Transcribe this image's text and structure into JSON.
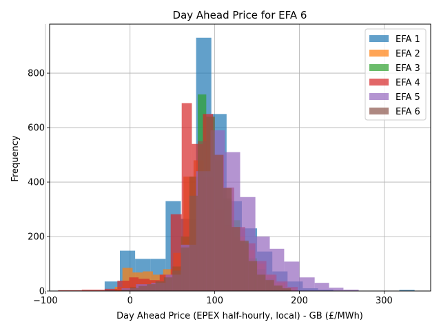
{
  "chart_data": {
    "type": "histogram",
    "title": "Day Ahead Price for EFA 6",
    "xlabel": "Day Ahead Price (EPEX half-hourly, local) - GB (£/MWh)",
    "ylabel": "Frequency",
    "xlim": [
      -95,
      355
    ],
    "ylim": [
      0,
      980
    ],
    "xticks": [
      -100,
      0,
      100,
      200,
      300
    ],
    "yticks": [
      0,
      200,
      400,
      600,
      800
    ],
    "grid": true,
    "legend_position": "top-right",
    "alpha": 0.7,
    "series": [
      {
        "name": "EFA 1",
        "color": "#1f77b4",
        "bins": [
          [
            -30,
            -12,
            35
          ],
          [
            -12,
            6,
            148
          ],
          [
            6,
            24,
            118
          ],
          [
            24,
            42,
            118
          ],
          [
            42,
            60,
            330
          ],
          [
            60,
            78,
            265
          ],
          [
            78,
            96,
            930
          ],
          [
            96,
            114,
            650
          ],
          [
            114,
            132,
            330
          ],
          [
            132,
            150,
            230
          ],
          [
            150,
            168,
            145
          ],
          [
            168,
            186,
            72
          ],
          [
            186,
            204,
            35
          ],
          [
            204,
            222,
            10
          ],
          [
            222,
            240,
            5
          ],
          [
            318,
            336,
            4
          ]
        ]
      },
      {
        "name": "EFA 2",
        "color": "#ff7f0e",
        "bins": [
          [
            -18,
            -9,
            15
          ],
          [
            -9,
            3,
            85
          ],
          [
            3,
            15,
            68
          ],
          [
            15,
            27,
            72
          ],
          [
            27,
            39,
            60
          ],
          [
            39,
            51,
            80
          ],
          [
            51,
            63,
            140
          ],
          [
            63,
            75,
            420
          ],
          [
            75,
            87,
            480
          ],
          [
            87,
            99,
            420
          ],
          [
            99,
            111,
            300
          ],
          [
            111,
            123,
            240
          ],
          [
            123,
            135,
            200
          ],
          [
            135,
            147,
            150
          ],
          [
            147,
            159,
            100
          ],
          [
            159,
            171,
            60
          ],
          [
            171,
            183,
            30
          ],
          [
            183,
            195,
            10
          ]
        ]
      },
      {
        "name": "EFA 3",
        "color": "#2ca02c",
        "bins": [
          [
            -10,
            0,
            5
          ],
          [
            0,
            10,
            15
          ],
          [
            10,
            20,
            20
          ],
          [
            20,
            30,
            25
          ],
          [
            30,
            40,
            35
          ],
          [
            40,
            50,
            50
          ],
          [
            50,
            60,
            90
          ],
          [
            60,
            70,
            200
          ],
          [
            70,
            80,
            420
          ],
          [
            80,
            90,
            722
          ],
          [
            90,
            100,
            640
          ],
          [
            100,
            110,
            480
          ],
          [
            110,
            120,
            340
          ],
          [
            120,
            130,
            260
          ],
          [
            130,
            140,
            180
          ],
          [
            140,
            150,
            120
          ],
          [
            150,
            160,
            80
          ],
          [
            160,
            170,
            45
          ],
          [
            170,
            180,
            20
          ],
          [
            180,
            190,
            10
          ]
        ]
      },
      {
        "name": "EFA 4",
        "color": "#d62728",
        "bins": [
          [
            -85,
            -57,
            3
          ],
          [
            -57,
            -30,
            5
          ],
          [
            -30,
            -15,
            8
          ],
          [
            -15,
            -1,
            38
          ],
          [
            -1,
            10,
            50
          ],
          [
            10,
            23,
            45
          ],
          [
            23,
            35,
            40
          ],
          [
            35,
            48,
            60
          ],
          [
            48,
            61,
            282
          ],
          [
            61,
            73,
            690
          ],
          [
            73,
            86,
            540
          ],
          [
            86,
            98,
            650
          ],
          [
            98,
            111,
            500
          ],
          [
            111,
            123,
            380
          ],
          [
            123,
            136,
            235
          ],
          [
            136,
            148,
            175
          ],
          [
            148,
            161,
            110
          ],
          [
            161,
            173,
            60
          ],
          [
            173,
            186,
            35
          ],
          [
            186,
            198,
            15
          ]
        ]
      },
      {
        "name": "EFA 5",
        "color": "#9467bd",
        "bins": [
          [
            -10,
            7,
            10
          ],
          [
            7,
            25,
            25
          ],
          [
            25,
            42,
            30
          ],
          [
            42,
            60,
            60
          ],
          [
            60,
            78,
            170
          ],
          [
            78,
            95,
            440
          ],
          [
            95,
            112,
            590
          ],
          [
            112,
            130,
            510
          ],
          [
            130,
            148,
            345
          ],
          [
            148,
            165,
            200
          ],
          [
            165,
            182,
            155
          ],
          [
            182,
            200,
            108
          ],
          [
            200,
            218,
            50
          ],
          [
            218,
            235,
            30
          ],
          [
            235,
            252,
            12
          ],
          [
            252,
            270,
            5
          ]
        ]
      },
      {
        "name": "EFA 6",
        "color": "#8c564b",
        "bins": [
          [
            -10,
            0,
            5
          ],
          [
            0,
            10,
            10
          ],
          [
            10,
            20,
            18
          ],
          [
            20,
            30,
            25
          ],
          [
            30,
            40,
            35
          ],
          [
            40,
            50,
            50
          ],
          [
            50,
            60,
            75
          ],
          [
            60,
            70,
            160
          ],
          [
            70,
            80,
            350
          ],
          [
            80,
            90,
            550
          ],
          [
            90,
            100,
            640
          ],
          [
            100,
            110,
            500
          ],
          [
            110,
            120,
            378
          ],
          [
            120,
            130,
            235
          ],
          [
            130,
            140,
            185
          ],
          [
            140,
            150,
            110
          ],
          [
            150,
            160,
            60
          ],
          [
            160,
            170,
            40
          ],
          [
            170,
            180,
            20
          ],
          [
            180,
            190,
            10
          ]
        ]
      }
    ]
  }
}
